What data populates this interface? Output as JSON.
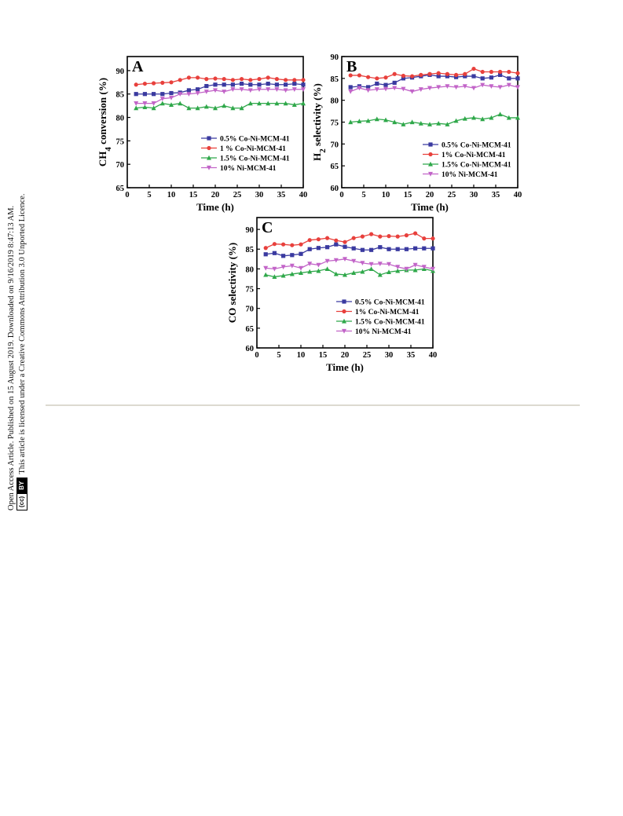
{
  "side_notice": {
    "line1": "Open Access Article. Published on 15 August 2019. Downloaded on 9/16/2019 8:47:13 AM.",
    "badge_cc": "(cc)",
    "badge_by": "BY",
    "line2": "This article is licensed under a Creative Commons Attribution 3.0 Unported Licence."
  },
  "colors": {
    "0.5% Co-Ni-MCM-41": "#3a3aa0",
    "1% Co-Ni-MCM-41": "#e8403c",
    "1.5% Co-Ni-MCM-41": "#2fa84a",
    "10% Ni-MCM-41": "#c264c8"
  },
  "chart_data": [
    {
      "type": "line",
      "panel_label": "A",
      "xlabel": "Time (h)",
      "ylabel": "CH4 conversion (%)",
      "xlim": [
        0,
        40
      ],
      "ylim": [
        65,
        93
      ],
      "xticks": [
        "0",
        "5",
        "10",
        "15",
        "20",
        "25",
        "30",
        "35",
        "40"
      ],
      "yticks": [
        "65",
        "70",
        "75",
        "80",
        "85",
        "90"
      ],
      "legend_position": "bottom-right",
      "x": [
        2,
        4,
        6,
        8,
        10,
        12,
        14,
        16,
        18,
        20,
        22,
        24,
        26,
        28,
        30,
        32,
        34,
        36,
        38,
        40
      ],
      "series": [
        {
          "name": "0.5% Co-Ni-MCM-41",
          "marker": "square",
          "values": [
            85.0,
            85.0,
            85.0,
            85.0,
            85.2,
            85.3,
            85.8,
            86.0,
            86.7,
            87.0,
            87.0,
            87.0,
            87.2,
            87.0,
            87.0,
            87.2,
            87.0,
            87.0,
            87.2,
            87.0
          ]
        },
        {
          "name": "1 % Co-Ni-MCM-41",
          "marker": "circle",
          "values": [
            87.0,
            87.2,
            87.3,
            87.4,
            87.5,
            88.0,
            88.5,
            88.5,
            88.2,
            88.3,
            88.2,
            88.0,
            88.2,
            88.0,
            88.2,
            88.5,
            88.2,
            88.0,
            88.0,
            88.0
          ]
        },
        {
          "name": "1.5% Co-Ni-MCM-41",
          "marker": "triangle-up",
          "values": [
            82.0,
            82.2,
            82.0,
            83.0,
            82.7,
            83.0,
            82.0,
            82.0,
            82.3,
            82.0,
            82.5,
            82.0,
            82.0,
            83.0,
            83.0,
            83.0,
            83.0,
            83.0,
            82.7,
            83.0
          ]
        },
        {
          "name": "10% Ni-MCM-41",
          "marker": "triangle-down",
          "values": [
            83.0,
            83.0,
            83.0,
            84.0,
            84.2,
            85.0,
            85.0,
            85.2,
            85.5,
            85.8,
            85.5,
            86.0,
            86.0,
            85.8,
            86.0,
            86.0,
            86.0,
            85.8,
            86.0,
            86.0
          ]
        }
      ]
    },
    {
      "type": "line",
      "panel_label": "B",
      "xlabel": "Time (h)",
      "ylabel": "H2 selectivity (%)",
      "xlim": [
        0,
        40
      ],
      "ylim": [
        60,
        90
      ],
      "xticks": [
        "0",
        "5",
        "10",
        "15",
        "20",
        "25",
        "30",
        "35",
        "40"
      ],
      "yticks": [
        "60",
        "65",
        "70",
        "75",
        "80",
        "85",
        "90"
      ],
      "legend_position": "bottom-right",
      "x": [
        2,
        4,
        6,
        8,
        10,
        12,
        14,
        16,
        18,
        20,
        22,
        24,
        26,
        28,
        30,
        32,
        34,
        36,
        38,
        40
      ],
      "series": [
        {
          "name": "0.5% Co-Ni-MCM-41",
          "marker": "square",
          "values": [
            83.0,
            83.2,
            83.0,
            83.8,
            83.5,
            84.0,
            85.0,
            85.2,
            85.5,
            85.8,
            85.5,
            85.5,
            85.3,
            85.5,
            85.5,
            85.0,
            85.2,
            85.8,
            85.0,
            85.0
          ]
        },
        {
          "name": "1% Co-Ni-MCM-41",
          "marker": "circle",
          "values": [
            85.7,
            85.7,
            85.3,
            85.0,
            85.2,
            86.0,
            85.6,
            85.5,
            85.8,
            86.0,
            86.2,
            86.0,
            85.8,
            86.0,
            87.2,
            86.5,
            86.5,
            86.5,
            86.5,
            86.2
          ]
        },
        {
          "name": "1.5% Co-Ni-MCM-41",
          "marker": "triangle-up",
          "values": [
            75.0,
            75.2,
            75.3,
            75.7,
            75.5,
            75.0,
            74.5,
            75.0,
            74.7,
            74.5,
            74.7,
            74.5,
            75.3,
            75.8,
            76.0,
            75.7,
            76.0,
            76.8,
            76.0,
            76.0
          ]
        },
        {
          "name": "10% Ni-MCM-41",
          "marker": "triangle-down",
          "values": [
            82.0,
            82.8,
            82.3,
            82.5,
            82.6,
            82.8,
            82.6,
            82.0,
            82.5,
            82.8,
            83.0,
            83.2,
            83.0,
            83.2,
            82.8,
            83.5,
            83.2,
            83.0,
            83.5,
            83.0
          ]
        }
      ]
    },
    {
      "type": "line",
      "panel_label": "C",
      "xlabel": "Time (h)",
      "ylabel": "CO selectivity (%)",
      "xlim": [
        0,
        40
      ],
      "ylim": [
        60,
        93
      ],
      "xticks": [
        "0",
        "5",
        "10",
        "15",
        "20",
        "25",
        "30",
        "35",
        "40"
      ],
      "yticks": [
        "60",
        "65",
        "70",
        "75",
        "80",
        "85",
        "90"
      ],
      "legend_position": "bottom-right",
      "x": [
        2,
        4,
        6,
        8,
        10,
        12,
        14,
        16,
        18,
        20,
        22,
        24,
        26,
        28,
        30,
        32,
        34,
        36,
        38,
        40
      ],
      "series": [
        {
          "name": "0.5% Co-Ni-MCM-41",
          "marker": "square",
          "values": [
            83.7,
            84.0,
            83.3,
            83.5,
            83.8,
            85.0,
            85.3,
            85.5,
            86.2,
            85.6,
            85.2,
            84.8,
            84.8,
            85.5,
            85.0,
            85.0,
            85.0,
            85.2,
            85.2,
            85.2
          ]
        },
        {
          "name": "1% Co-Ni-MCM-41",
          "marker": "circle",
          "values": [
            85.3,
            86.3,
            86.2,
            86.0,
            86.2,
            87.3,
            87.5,
            87.8,
            87.2,
            86.8,
            87.8,
            88.2,
            88.8,
            88.2,
            88.3,
            88.2,
            88.5,
            89.0,
            87.7,
            87.7
          ]
        },
        {
          "name": "1.5% Co-Ni-MCM-41",
          "marker": "triangle-up",
          "values": [
            78.5,
            78.0,
            78.3,
            78.7,
            79.0,
            79.3,
            79.5,
            80.0,
            78.7,
            78.5,
            79.0,
            79.3,
            80.0,
            78.5,
            79.2,
            79.5,
            79.7,
            79.7,
            80.0,
            79.5
          ]
        },
        {
          "name": "10% Ni-MCM-41",
          "marker": "triangle-down",
          "values": [
            80.2,
            80.0,
            80.5,
            80.8,
            80.2,
            81.3,
            81.0,
            82.0,
            82.2,
            82.5,
            82.0,
            81.5,
            81.2,
            81.3,
            81.2,
            80.5,
            80.0,
            81.0,
            80.5,
            80.0
          ]
        }
      ]
    }
  ]
}
